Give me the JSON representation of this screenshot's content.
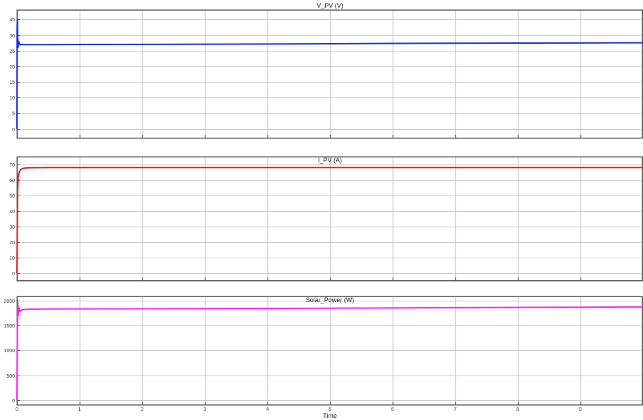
{
  "chart_data": [
    {
      "type": "line",
      "title": "V_PV (V)",
      "ylabel": "",
      "xlabel": "",
      "xlim": [
        0,
        10
      ],
      "ylim": [
        -3,
        38
      ],
      "yticks": [
        0,
        5,
        10,
        15,
        20,
        25,
        30,
        35
      ],
      "xticks": [
        0,
        1,
        2,
        3,
        4,
        5,
        6,
        7,
        8,
        9
      ],
      "grid": true,
      "color": "#1f2ee0",
      "series": [
        {
          "x": [
            0,
            0.003,
            0.008,
            0.012,
            0.018,
            0.025,
            0.035,
            0.05,
            0.07,
            0.1,
            0.2,
            0.5,
            1,
            2,
            3,
            4,
            5,
            6,
            7,
            8,
            9,
            10
          ],
          "values": [
            0,
            33,
            35,
            30,
            26,
            28,
            27.6,
            26.8,
            27,
            26.9,
            26.9,
            26.9,
            26.95,
            27.0,
            27.05,
            27.1,
            27.2,
            27.3,
            27.35,
            27.4,
            27.45,
            27.5
          ]
        }
      ]
    },
    {
      "type": "line",
      "title": "I_PV (A)",
      "ylabel": "",
      "xlabel": "",
      "xlim": [
        0,
        10
      ],
      "ylim": [
        -5,
        75
      ],
      "yticks": [
        0,
        10,
        20,
        30,
        40,
        50,
        60,
        70
      ],
      "xticks": [
        0,
        1,
        2,
        3,
        4,
        5,
        6,
        7,
        8,
        9
      ],
      "grid": true,
      "color": "#e02020",
      "series": [
        {
          "x": [
            0,
            0.005,
            0.01,
            0.02,
            0.04,
            0.06,
            0.1,
            0.15,
            0.2,
            0.5,
            1,
            2,
            3,
            4,
            5,
            6,
            7,
            8,
            9,
            10
          ],
          "values": [
            0,
            30,
            52,
            62,
            65.5,
            66.8,
            67.5,
            67.8,
            67.9,
            68,
            68,
            68,
            68,
            68,
            68,
            68,
            68,
            68,
            68,
            68
          ]
        }
      ]
    },
    {
      "type": "line",
      "title": "Solar_Power (W)",
      "ylabel": "",
      "xlabel": "Time",
      "xlim": [
        0,
        10
      ],
      "ylim": [
        -100,
        2080
      ],
      "yticks": [
        0,
        500,
        1000,
        1500,
        2000
      ],
      "xticks": [
        0,
        1,
        2,
        3,
        4,
        5,
        6,
        7,
        8,
        9
      ],
      "grid": true,
      "color": "#ff20ff",
      "series": [
        {
          "x": [
            0,
            0.004,
            0.01,
            0.015,
            0.02,
            0.03,
            0.05,
            0.08,
            0.12,
            0.2,
            0.5,
            1,
            2,
            3,
            4,
            5,
            6,
            7,
            8,
            9,
            10
          ],
          "values": [
            0,
            1000,
            1900,
            1950,
            1700,
            1850,
            1780,
            1810,
            1820,
            1825,
            1828,
            1830,
            1833,
            1836,
            1840,
            1845,
            1850,
            1855,
            1860,
            1865,
            1870
          ]
        }
      ]
    }
  ]
}
